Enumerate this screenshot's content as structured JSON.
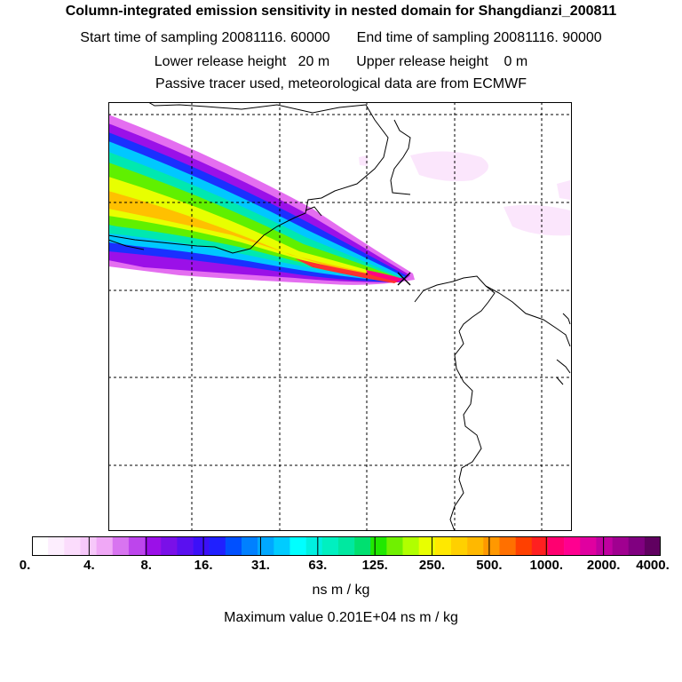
{
  "title": "Column-integrated emission sensitivity in nested domain for Shangdianzi_200811",
  "sampling": {
    "start": "Start time of sampling 20081116. 60000",
    "end": "End time of sampling 20081116. 90000"
  },
  "release": {
    "lower": "Lower release height   20 m",
    "upper": "Upper release height    0 m"
  },
  "info": "Passive tracer used, meteorological data are from ECMWF",
  "colorbar": {
    "colors": [
      "#ffffff",
      "#fdeefe",
      "#fbdcfc",
      "#f7c8fa",
      "#f0a8f6",
      "#d874f0",
      "#bd45ec",
      "#9b10e8",
      "#7a10e8",
      "#5a10f0",
      "#3c10f8",
      "#2020ff",
      "#0050ff",
      "#0080ff",
      "#00a8ff",
      "#00ccff",
      "#00ffff",
      "#00f0e0",
      "#00f0c0",
      "#00e8a0",
      "#00e070",
      "#20e800",
      "#70f000",
      "#b0ff00",
      "#e8ff00",
      "#ffe800",
      "#ffd000",
      "#ffb800",
      "#ff9800",
      "#ff7000",
      "#ff4000",
      "#ff2020",
      "#ff0070",
      "#ff0090",
      "#e000a0",
      "#c000a0",
      "#a00090",
      "#800080",
      "#600060"
    ],
    "ticks": [
      "0.",
      "4.",
      "8.",
      "16.",
      "31.",
      "63.",
      "125.",
      "250.",
      "500.",
      "1000.",
      "2000.",
      "4000."
    ],
    "units": "ns m / kg"
  },
  "max_value": "Maximum value  0.201E+04 ns m / kg",
  "map": {
    "receptor_marker": "receptor-x-marker"
  }
}
